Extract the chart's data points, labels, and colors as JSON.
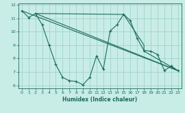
{
  "xlabel": "Humidex (Indice chaleur)",
  "bg_color": "#c8ece6",
  "grid_color": "#a0d4ca",
  "line_color": "#1a6b5a",
  "xlim": [
    -0.5,
    23.5
  ],
  "ylim": [
    5.8,
    12.1
  ],
  "xticks": [
    0,
    1,
    2,
    3,
    4,
    5,
    6,
    7,
    8,
    9,
    10,
    11,
    12,
    13,
    14,
    15,
    16,
    17,
    18,
    19,
    20,
    21,
    22,
    23
  ],
  "yticks": [
    6,
    7,
    8,
    9,
    10,
    11,
    12
  ],
  "curve1_x": [
    0,
    1,
    2,
    3,
    4,
    5,
    6,
    7,
    8,
    9,
    10,
    11,
    12,
    13,
    14,
    15,
    16,
    17,
    18,
    19,
    20,
    21,
    22,
    23
  ],
  "curve1_y": [
    11.55,
    11.05,
    11.35,
    10.5,
    9.0,
    7.55,
    6.6,
    6.35,
    6.3,
    6.05,
    6.6,
    8.2,
    7.2,
    10.05,
    10.5,
    11.3,
    10.8,
    9.5,
    8.6,
    8.55,
    8.3,
    7.1,
    7.45,
    7.1
  ],
  "line1_x": [
    0,
    23
  ],
  "line1_y": [
    11.55,
    7.1
  ],
  "line2_x": [
    2,
    23
  ],
  "line2_y": [
    11.35,
    7.1
  ],
  "line3_x": [
    2,
    15
  ],
  "line3_y": [
    11.35,
    11.28
  ],
  "line4_x": [
    15,
    18,
    18,
    23
  ],
  "line4_y": [
    11.28,
    9.0,
    8.55,
    7.1
  ]
}
